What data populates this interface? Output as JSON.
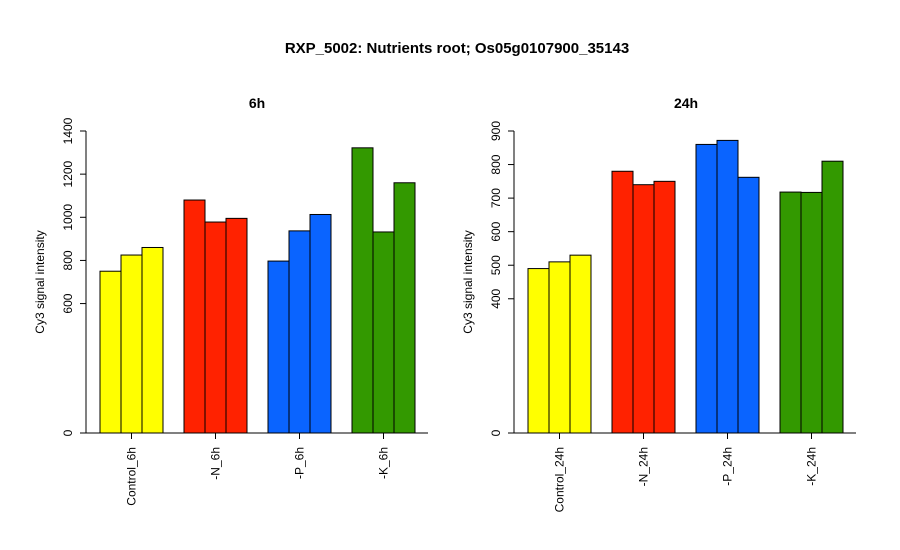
{
  "title": "RXP_5002: Nutrients root; Os05g0107900_35143",
  "chart_data": [
    {
      "type": "bar",
      "title": "6h",
      "ylabel": "Cy3 signal intensity",
      "yticks": [
        0,
        600,
        800,
        1000,
        1200,
        1400
      ],
      "categories": [
        "Control_6h",
        "-N_6h",
        "-P_6h",
        "-K_6h"
      ],
      "colors": [
        "#ffff00",
        "#ff2200",
        "#0a64ff",
        "#339900"
      ],
      "values": [
        [
          750,
          825,
          860
        ],
        [
          1080,
          978,
          995
        ],
        [
          797,
          937,
          1013
        ],
        [
          1322,
          932,
          1160
        ]
      ]
    },
    {
      "type": "bar",
      "title": "24h",
      "ylabel": "Cy3 signal intensity",
      "yticks": [
        0,
        400,
        500,
        600,
        700,
        800,
        900
      ],
      "categories": [
        "Control_24h",
        "-N_24h",
        "-P_24h",
        "-K_24h"
      ],
      "colors": [
        "#ffff00",
        "#ff2200",
        "#0a64ff",
        "#339900"
      ],
      "values": [
        [
          490,
          510,
          530
        ],
        [
          780,
          740,
          750
        ],
        [
          860,
          872,
          762
        ],
        [
          718,
          717,
          810
        ]
      ]
    }
  ]
}
